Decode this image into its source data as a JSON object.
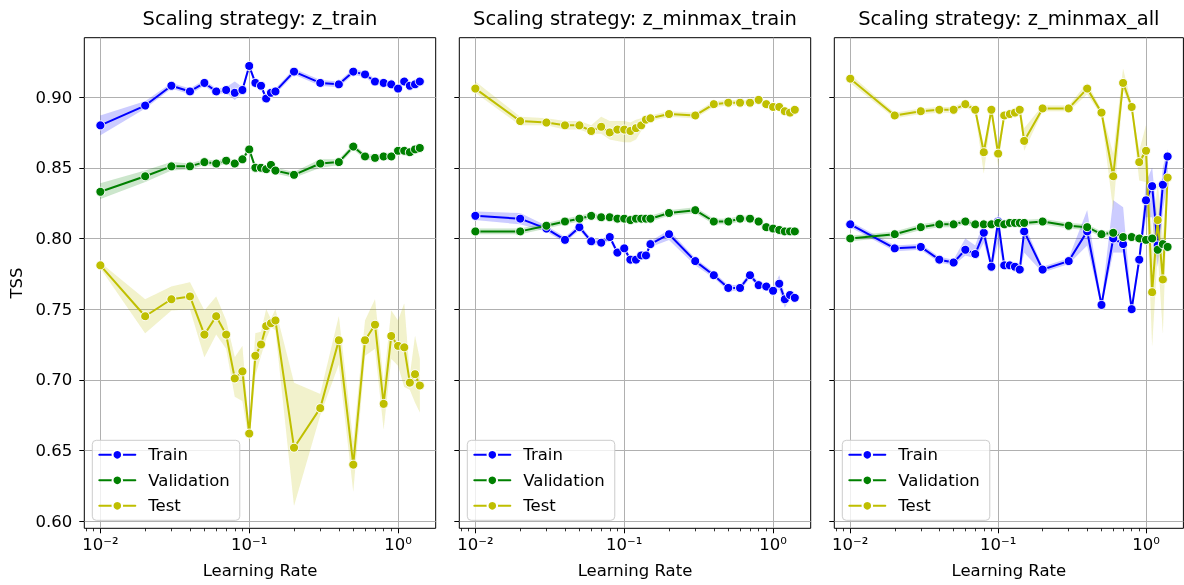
{
  "chart_data": [
    {
      "type": "line",
      "title": "Scaling strategy: z_train",
      "xlabel": "Learning Rate",
      "ylabel": "TSS",
      "log": "x",
      "grid": true,
      "legend": "bottom left",
      "marker": "circle",
      "line_style": "solid",
      "xlim": [
        0.0078,
        1.79
      ],
      "ylim": [
        0.595,
        0.942
      ],
      "xticks": [
        {
          "value": 0.008,
          "label": null
        },
        {
          "value": 0.009,
          "label": null
        },
        {
          "value": 0.01,
          "label": "10⁻²"
        },
        {
          "value": 0.02,
          "label": null
        },
        {
          "value": 0.03,
          "label": null
        },
        {
          "value": 0.04,
          "label": null
        },
        {
          "value": 0.05,
          "label": null
        },
        {
          "value": 0.06,
          "label": null
        },
        {
          "value": 0.07,
          "label": null
        },
        {
          "value": 0.08,
          "label": null
        },
        {
          "value": 0.09,
          "label": null
        },
        {
          "value": 0.1,
          "label": "10⁻¹"
        },
        {
          "value": 0.2,
          "label": null
        },
        {
          "value": 0.3,
          "label": null
        },
        {
          "value": 0.4,
          "label": null
        },
        {
          "value": 0.5,
          "label": null
        },
        {
          "value": 0.6,
          "label": null
        },
        {
          "value": 0.7,
          "label": null
        },
        {
          "value": 0.8,
          "label": null
        },
        {
          "value": 0.9,
          "label": null
        },
        {
          "value": 1,
          "label": "10⁰"
        }
      ],
      "yticks": [
        {
          "value": 0.6,
          "label": "0.60"
        },
        {
          "value": 0.65,
          "label": "0.65"
        },
        {
          "value": 0.7,
          "label": "0.70"
        },
        {
          "value": 0.75,
          "label": "0.75"
        },
        {
          "value": 0.8,
          "label": "0.80"
        },
        {
          "value": 0.85,
          "label": "0.85"
        },
        {
          "value": 0.9,
          "label": "0.90"
        }
      ],
      "x": [
        0.01,
        0.02,
        0.03,
        0.04,
        0.05,
        0.06,
        0.07,
        0.08,
        0.09,
        0.1,
        0.11,
        0.12,
        0.13,
        0.14,
        0.15,
        0.2,
        0.3,
        0.4,
        0.5,
        0.6,
        0.7,
        0.8,
        0.9,
        1.0,
        1.1,
        1.2,
        1.3,
        1.4
      ],
      "series": [
        {
          "name": "Train",
          "color": "#0000ff",
          "values": [
            0.88,
            0.894,
            0.908,
            0.904,
            0.91,
            0.904,
            0.905,
            0.903,
            0.905,
            0.922,
            0.91,
            0.908,
            0.899,
            0.903,
            0.904,
            0.918,
            0.91,
            0.909,
            0.918,
            0.916,
            0.911,
            0.91,
            0.909,
            0.906,
            0.911,
            0.908,
            0.909,
            0.911
          ],
          "lower": [
            0.873,
            0.892,
            0.906,
            0.902,
            0.908,
            0.902,
            0.903,
            0.898,
            0.903,
            0.92,
            0.908,
            0.906,
            0.897,
            0.901,
            0.902,
            0.916,
            0.908,
            0.907,
            0.916,
            0.914,
            0.909,
            0.908,
            0.907,
            0.904,
            0.909,
            0.906,
            0.907,
            0.909
          ],
          "upper": [
            0.887,
            0.897,
            0.91,
            0.906,
            0.912,
            0.906,
            0.907,
            0.911,
            0.907,
            0.924,
            0.912,
            0.91,
            0.901,
            0.905,
            0.906,
            0.92,
            0.912,
            0.911,
            0.92,
            0.918,
            0.913,
            0.912,
            0.911,
            0.908,
            0.913,
            0.91,
            0.911,
            0.913
          ]
        },
        {
          "name": "Validation",
          "color": "#008000",
          "values": [
            0.833,
            0.844,
            0.851,
            0.851,
            0.854,
            0.853,
            0.855,
            0.853,
            0.856,
            0.863,
            0.85,
            0.85,
            0.849,
            0.852,
            0.848,
            0.845,
            0.853,
            0.854,
            0.865,
            0.858,
            0.857,
            0.858,
            0.858,
            0.862,
            0.862,
            0.861,
            0.863,
            0.864
          ],
          "lower": [
            0.828,
            0.84,
            0.848,
            0.849,
            0.852,
            0.851,
            0.853,
            0.851,
            0.854,
            0.861,
            0.848,
            0.848,
            0.847,
            0.85,
            0.846,
            0.843,
            0.85,
            0.852,
            0.863,
            0.856,
            0.855,
            0.856,
            0.856,
            0.86,
            0.86,
            0.859,
            0.861,
            0.862
          ],
          "upper": [
            0.839,
            0.848,
            0.854,
            0.853,
            0.856,
            0.855,
            0.857,
            0.855,
            0.858,
            0.865,
            0.852,
            0.852,
            0.851,
            0.854,
            0.85,
            0.847,
            0.856,
            0.856,
            0.867,
            0.86,
            0.859,
            0.86,
            0.86,
            0.864,
            0.864,
            0.863,
            0.865,
            0.866
          ]
        },
        {
          "name": "Test",
          "color": "#bfbf00",
          "values": [
            0.781,
            0.745,
            0.757,
            0.759,
            0.732,
            0.745,
            0.732,
            0.701,
            0.706,
            0.662,
            0.717,
            0.725,
            0.738,
            0.74,
            0.742,
            0.652,
            0.68,
            0.728,
            0.64,
            0.728,
            0.739,
            0.683,
            0.731,
            0.724,
            0.723,
            0.698,
            0.704,
            0.696
          ],
          "lower": [
            0.779,
            0.733,
            0.749,
            0.75,
            0.716,
            0.732,
            0.722,
            0.688,
            0.685,
            0.656,
            0.703,
            0.717,
            0.729,
            0.737,
            0.735,
            0.611,
            0.675,
            0.711,
            0.621,
            0.717,
            0.722,
            0.665,
            0.715,
            0.71,
            0.695,
            0.693,
            0.684,
            0.677
          ],
          "upper": [
            0.783,
            0.757,
            0.766,
            0.769,
            0.749,
            0.759,
            0.742,
            0.716,
            0.724,
            0.665,
            0.733,
            0.734,
            0.75,
            0.743,
            0.75,
            0.698,
            0.69,
            0.745,
            0.656,
            0.742,
            0.757,
            0.698,
            0.749,
            0.742,
            0.754,
            0.703,
            0.731,
            0.715
          ]
        }
      ]
    },
    {
      "type": "line",
      "title": "Scaling strategy: z_minmax_train",
      "xlabel": "Learning Rate",
      "log": "x",
      "grid": true,
      "legend": "bottom left",
      "marker": "circle",
      "line_style": "solid",
      "tick_labels": "x",
      "xlim": [
        0.0078,
        1.79
      ],
      "ylim": [
        0.595,
        0.942
      ],
      "xticks": [
        {
          "value": 0.008,
          "label": null
        },
        {
          "value": 0.009,
          "label": null
        },
        {
          "value": 0.01,
          "label": "10⁻²"
        },
        {
          "value": 0.02,
          "label": null
        },
        {
          "value": 0.03,
          "label": null
        },
        {
          "value": 0.04,
          "label": null
        },
        {
          "value": 0.05,
          "label": null
        },
        {
          "value": 0.06,
          "label": null
        },
        {
          "value": 0.07,
          "label": null
        },
        {
          "value": 0.08,
          "label": null
        },
        {
          "value": 0.09,
          "label": null
        },
        {
          "value": 0.1,
          "label": "10⁻¹"
        },
        {
          "value": 0.2,
          "label": null
        },
        {
          "value": 0.3,
          "label": null
        },
        {
          "value": 0.4,
          "label": null
        },
        {
          "value": 0.5,
          "label": null
        },
        {
          "value": 0.6,
          "label": null
        },
        {
          "value": 0.7,
          "label": null
        },
        {
          "value": 0.8,
          "label": null
        },
        {
          "value": 0.9,
          "label": null
        },
        {
          "value": 1,
          "label": "10⁰"
        }
      ],
      "yticks": [
        0.6,
        0.65,
        0.7,
        0.75,
        0.8,
        0.85,
        0.9
      ],
      "x": [
        0.01,
        0.02,
        0.03,
        0.04,
        0.05,
        0.06,
        0.07,
        0.08,
        0.09,
        0.1,
        0.11,
        0.12,
        0.13,
        0.14,
        0.15,
        0.2,
        0.3,
        0.4,
        0.5,
        0.6,
        0.7,
        0.8,
        0.9,
        1.0,
        1.1,
        1.2,
        1.3,
        1.4
      ],
      "series": [
        {
          "name": "Train",
          "color": "#0000ff",
          "values": [
            0.816,
            0.814,
            0.807,
            0.799,
            0.808,
            0.798,
            0.797,
            0.801,
            0.79,
            0.793,
            0.785,
            0.785,
            0.788,
            0.788,
            0.796,
            0.803,
            0.784,
            0.774,
            0.765,
            0.765,
            0.774,
            0.767,
            0.766,
            0.763,
            0.768,
            0.757,
            0.76,
            0.758
          ],
          "lower": [
            0.813,
            0.81,
            0.805,
            0.797,
            0.806,
            0.796,
            0.795,
            0.799,
            0.788,
            0.791,
            0.783,
            0.783,
            0.786,
            0.786,
            0.794,
            0.799,
            0.781,
            0.772,
            0.763,
            0.763,
            0.772,
            0.765,
            0.764,
            0.761,
            0.764,
            0.751,
            0.758,
            0.756
          ],
          "upper": [
            0.819,
            0.818,
            0.809,
            0.801,
            0.81,
            0.8,
            0.799,
            0.803,
            0.792,
            0.795,
            0.787,
            0.787,
            0.79,
            0.79,
            0.798,
            0.806,
            0.786,
            0.776,
            0.767,
            0.767,
            0.776,
            0.769,
            0.768,
            0.765,
            0.774,
            0.76,
            0.762,
            0.76
          ]
        },
        {
          "name": "Validation",
          "color": "#008000",
          "values": [
            0.805,
            0.805,
            0.809,
            0.812,
            0.814,
            0.816,
            0.815,
            0.815,
            0.814,
            0.814,
            0.813,
            0.814,
            0.814,
            0.814,
            0.814,
            0.818,
            0.82,
            0.812,
            0.812,
            0.814,
            0.814,
            0.812,
            0.808,
            0.807,
            0.806,
            0.805,
            0.805,
            0.805
          ],
          "lower": [
            0.803,
            0.803,
            0.807,
            0.81,
            0.812,
            0.814,
            0.813,
            0.813,
            0.812,
            0.812,
            0.811,
            0.812,
            0.812,
            0.812,
            0.812,
            0.816,
            0.818,
            0.81,
            0.81,
            0.812,
            0.812,
            0.81,
            0.806,
            0.805,
            0.804,
            0.803,
            0.803,
            0.803
          ],
          "upper": [
            0.807,
            0.807,
            0.811,
            0.814,
            0.816,
            0.818,
            0.817,
            0.817,
            0.816,
            0.816,
            0.815,
            0.816,
            0.816,
            0.816,
            0.816,
            0.82,
            0.822,
            0.814,
            0.814,
            0.816,
            0.816,
            0.814,
            0.81,
            0.809,
            0.808,
            0.807,
            0.807,
            0.807
          ]
        },
        {
          "name": "Test",
          "color": "#bfbf00",
          "values": [
            0.906,
            0.883,
            0.882,
            0.88,
            0.88,
            0.876,
            0.879,
            0.875,
            0.877,
            0.877,
            0.876,
            0.878,
            0.88,
            0.884,
            0.885,
            0.888,
            0.887,
            0.895,
            0.896,
            0.896,
            0.896,
            0.898,
            0.895,
            0.893,
            0.893,
            0.89,
            0.889,
            0.891
          ],
          "lower": [
            0.903,
            0.88,
            0.88,
            0.877,
            0.877,
            0.874,
            0.874,
            0.87,
            0.869,
            0.868,
            0.868,
            0.87,
            0.876,
            0.882,
            0.883,
            0.886,
            0.885,
            0.893,
            0.894,
            0.894,
            0.894,
            0.896,
            0.893,
            0.891,
            0.891,
            0.888,
            0.887,
            0.889
          ],
          "upper": [
            0.911,
            0.886,
            0.885,
            0.883,
            0.883,
            0.88,
            0.886,
            0.883,
            0.883,
            0.883,
            0.882,
            0.884,
            0.885,
            0.887,
            0.887,
            0.89,
            0.889,
            0.897,
            0.898,
            0.898,
            0.898,
            0.9,
            0.897,
            0.895,
            0.895,
            0.892,
            0.891,
            0.893
          ]
        }
      ]
    },
    {
      "type": "line",
      "title": "Scaling strategy: z_minmax_all",
      "xlabel": "Learning Rate",
      "log": "x",
      "grid": true,
      "legend": "bottom left",
      "marker": "circle",
      "line_style": "solid",
      "tick_labels": "x",
      "xlim": [
        0.0078,
        1.79
      ],
      "ylim": [
        0.595,
        0.942
      ],
      "xticks": [
        {
          "value": 0.008,
          "label": null
        },
        {
          "value": 0.009,
          "label": null
        },
        {
          "value": 0.01,
          "label": "10⁻²"
        },
        {
          "value": 0.02,
          "label": null
        },
        {
          "value": 0.03,
          "label": null
        },
        {
          "value": 0.04,
          "label": null
        },
        {
          "value": 0.05,
          "label": null
        },
        {
          "value": 0.06,
          "label": null
        },
        {
          "value": 0.07,
          "label": null
        },
        {
          "value": 0.08,
          "label": null
        },
        {
          "value": 0.09,
          "label": null
        },
        {
          "value": 0.1,
          "label": "10⁻¹"
        },
        {
          "value": 0.2,
          "label": null
        },
        {
          "value": 0.3,
          "label": null
        },
        {
          "value": 0.4,
          "label": null
        },
        {
          "value": 0.5,
          "label": null
        },
        {
          "value": 0.6,
          "label": null
        },
        {
          "value": 0.7,
          "label": null
        },
        {
          "value": 0.8,
          "label": null
        },
        {
          "value": 0.9,
          "label": null
        },
        {
          "value": 1,
          "label": "10⁰"
        }
      ],
      "yticks": [
        0.6,
        0.65,
        0.7,
        0.75,
        0.8,
        0.85,
        0.9
      ],
      "x": [
        0.01,
        0.02,
        0.03,
        0.04,
        0.05,
        0.06,
        0.07,
        0.08,
        0.09,
        0.1,
        0.11,
        0.12,
        0.13,
        0.14,
        0.15,
        0.2,
        0.3,
        0.4,
        0.5,
        0.6,
        0.7,
        0.8,
        0.9,
        1.0,
        1.1,
        1.2,
        1.3,
        1.4
      ],
      "series": [
        {
          "name": "Train",
          "color": "#0000ff",
          "values": [
            0.81,
            0.793,
            0.794,
            0.785,
            0.783,
            0.792,
            0.789,
            0.804,
            0.78,
            0.812,
            0.781,
            0.781,
            0.78,
            0.778,
            0.805,
            0.778,
            0.784,
            0.805,
            0.753,
            0.8,
            0.796,
            0.75,
            0.785,
            0.827,
            0.837,
            0.795,
            0.838,
            0.858
          ],
          "lower": [
            0.808,
            0.791,
            0.792,
            0.783,
            0.781,
            0.788,
            0.786,
            0.797,
            0.778,
            0.797,
            0.779,
            0.779,
            0.778,
            0.776,
            0.79,
            0.776,
            0.782,
            0.795,
            0.751,
            0.79,
            0.79,
            0.748,
            0.78,
            0.815,
            0.815,
            0.78,
            0.82,
            0.84
          ],
          "upper": [
            0.812,
            0.795,
            0.796,
            0.787,
            0.785,
            0.8,
            0.795,
            0.812,
            0.782,
            0.818,
            0.783,
            0.783,
            0.782,
            0.78,
            0.81,
            0.78,
            0.786,
            0.82,
            0.755,
            0.827,
            0.822,
            0.752,
            0.79,
            0.84,
            0.85,
            0.81,
            0.85,
            0.863
          ]
        },
        {
          "name": "Validation",
          "color": "#008000",
          "values": [
            0.8,
            0.803,
            0.808,
            0.81,
            0.81,
            0.812,
            0.81,
            0.81,
            0.81,
            0.811,
            0.81,
            0.811,
            0.811,
            0.811,
            0.811,
            0.812,
            0.809,
            0.808,
            0.803,
            0.804,
            0.801,
            0.801,
            0.8,
            0.799,
            0.8,
            0.792,
            0.796,
            0.794
          ],
          "lower": [
            0.798,
            0.801,
            0.806,
            0.808,
            0.808,
            0.81,
            0.808,
            0.808,
            0.808,
            0.809,
            0.808,
            0.809,
            0.809,
            0.809,
            0.809,
            0.81,
            0.807,
            0.806,
            0.801,
            0.802,
            0.799,
            0.799,
            0.798,
            0.797,
            0.798,
            0.789,
            0.793,
            0.792
          ],
          "upper": [
            0.802,
            0.805,
            0.81,
            0.812,
            0.812,
            0.814,
            0.812,
            0.812,
            0.812,
            0.813,
            0.812,
            0.813,
            0.813,
            0.813,
            0.813,
            0.814,
            0.811,
            0.81,
            0.805,
            0.806,
            0.803,
            0.803,
            0.802,
            0.801,
            0.802,
            0.795,
            0.799,
            0.796
          ]
        },
        {
          "name": "Test",
          "color": "#bfbf00",
          "values": [
            0.913,
            0.887,
            0.89,
            0.891,
            0.891,
            0.895,
            0.891,
            0.861,
            0.891,
            0.86,
            0.887,
            0.888,
            0.889,
            0.891,
            0.869,
            0.892,
            0.892,
            0.906,
            0.889,
            0.844,
            0.91,
            0.893,
            0.854,
            0.862,
            0.762,
            0.813,
            0.771,
            0.843
          ],
          "lower": [
            0.91,
            0.885,
            0.888,
            0.889,
            0.889,
            0.893,
            0.889,
            0.846,
            0.889,
            0.851,
            0.885,
            0.886,
            0.887,
            0.889,
            0.862,
            0.89,
            0.89,
            0.902,
            0.887,
            0.82,
            0.905,
            0.891,
            0.841,
            0.84,
            0.724,
            0.79,
            0.733,
            0.835
          ],
          "upper": [
            0.916,
            0.889,
            0.892,
            0.893,
            0.893,
            0.897,
            0.893,
            0.866,
            0.893,
            0.866,
            0.889,
            0.89,
            0.891,
            0.893,
            0.878,
            0.894,
            0.894,
            0.91,
            0.891,
            0.86,
            0.92,
            0.895,
            0.862,
            0.88,
            0.8,
            0.84,
            0.8,
            0.85
          ]
        }
      ]
    }
  ]
}
